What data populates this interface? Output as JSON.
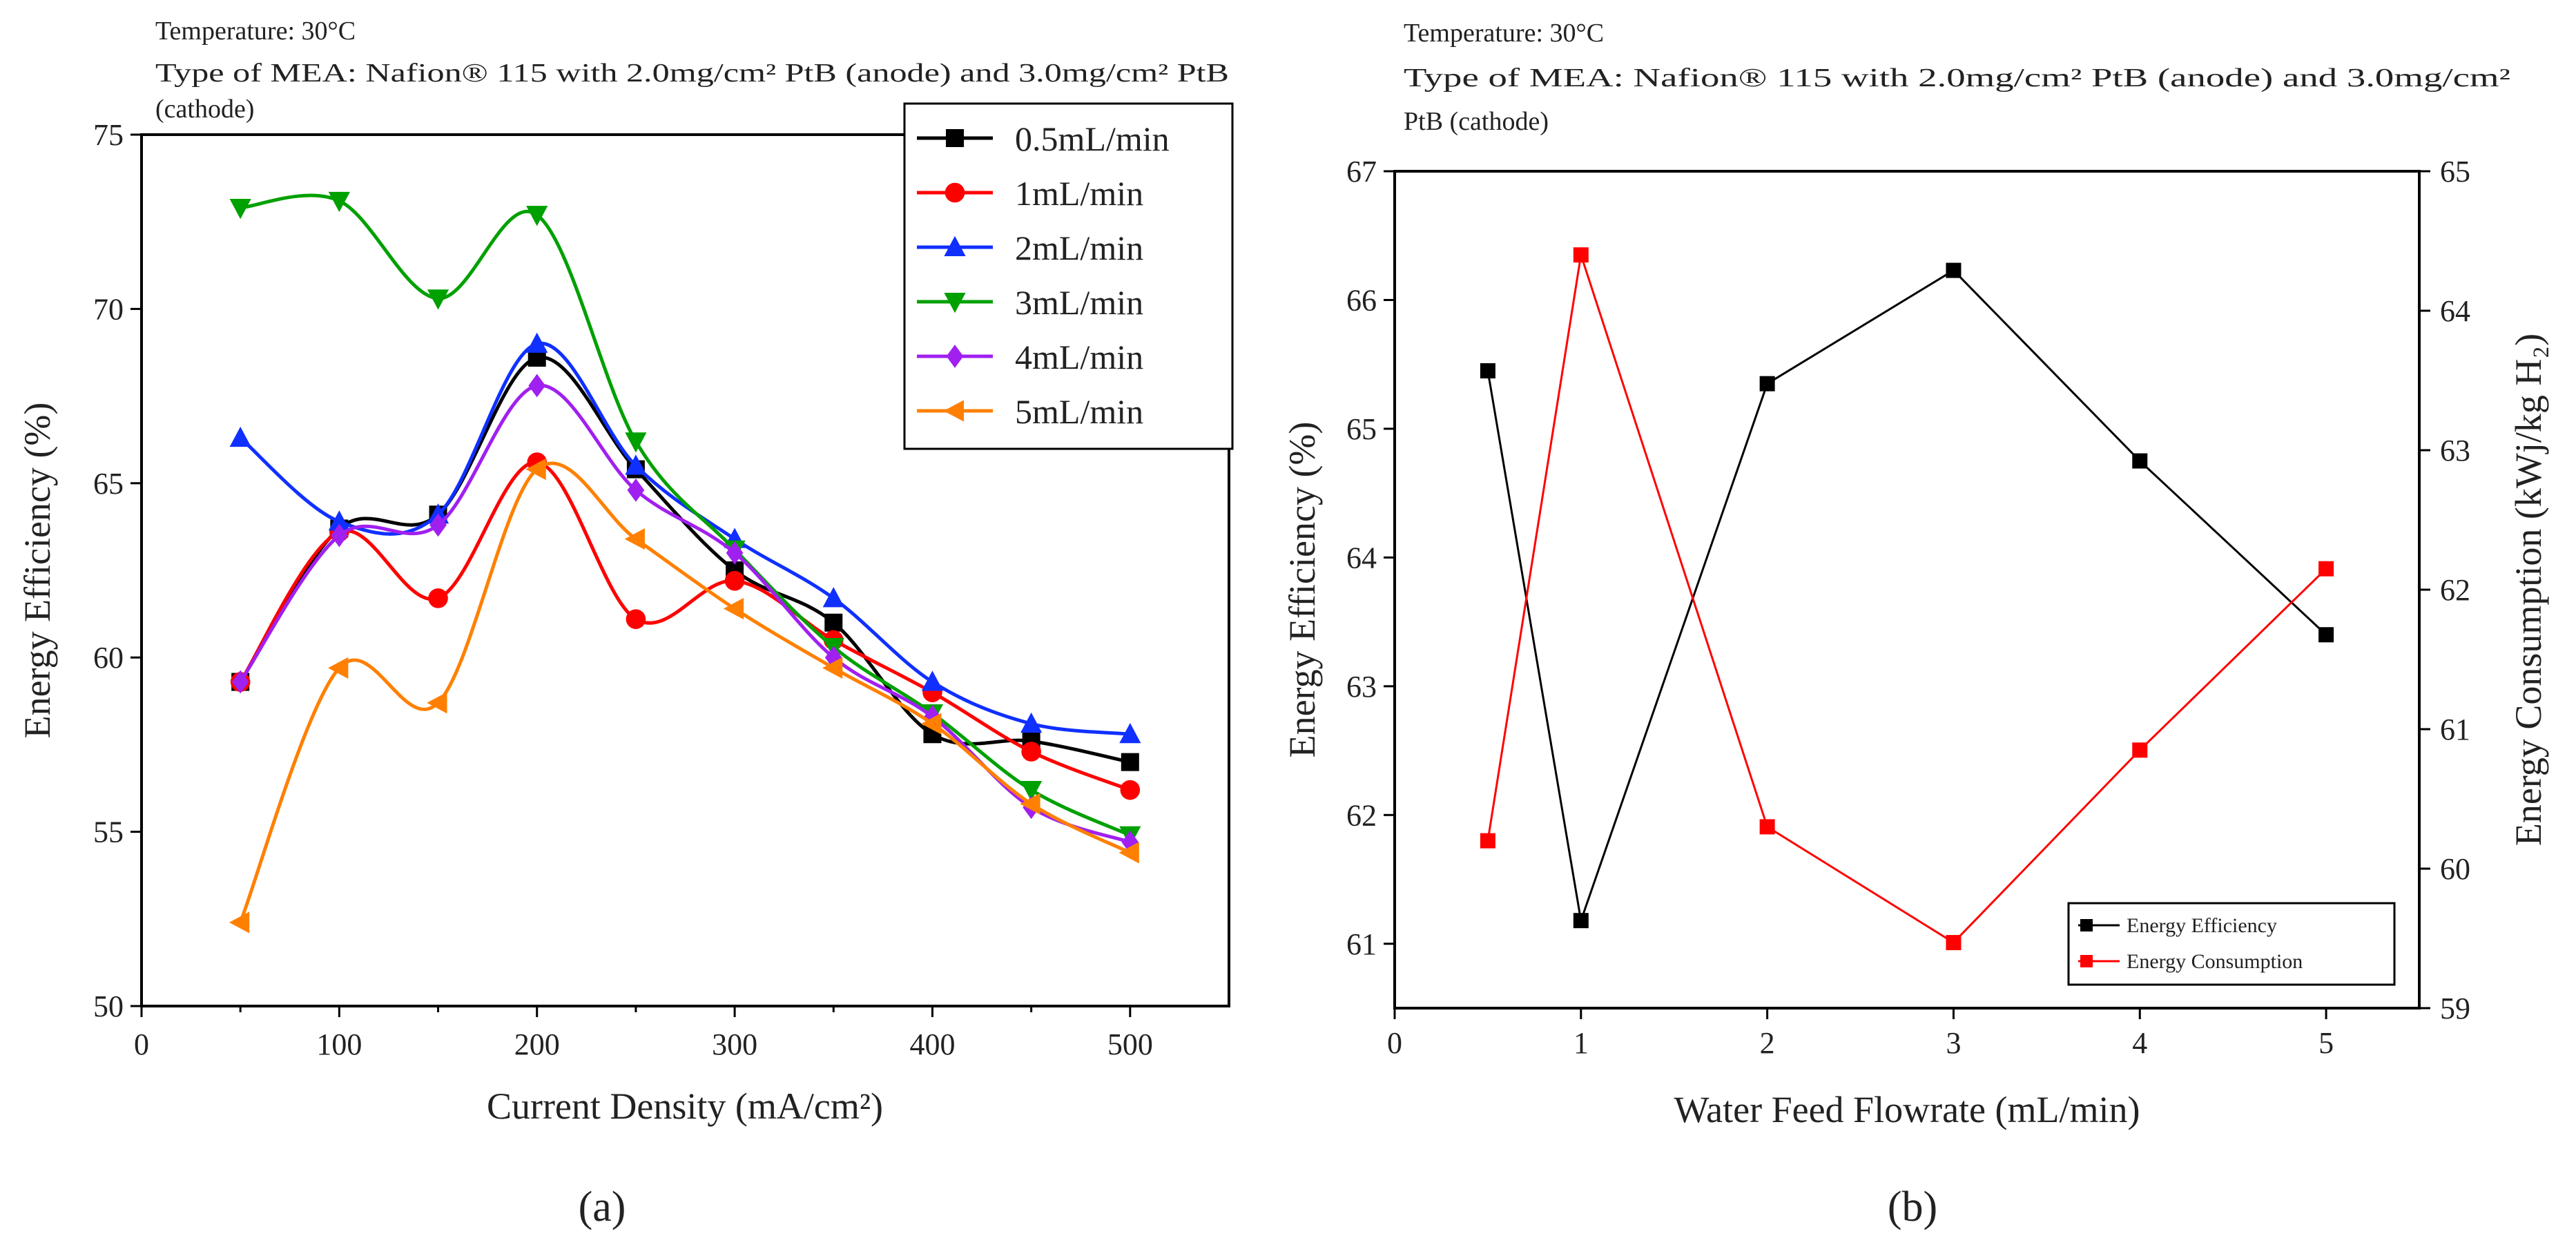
{
  "panel_a": {
    "note_line1": "Temperature: 30°C",
    "note_line2": "Type of MEA: Nafion® 115 with 2.0mg/cm² PtB (anode) and 3.0mg/cm² PtB",
    "note_line3": "(cathode)",
    "sublabel": "(a)"
  },
  "panel_b": {
    "note_line1": "Temperature: 30°C",
    "note_line2": "Type of MEA: Nafion® 115 with 2.0mg/cm² PtB (anode) and 3.0mg/cm²",
    "note_line3": "PtB (cathode)",
    "sublabel": "(b)"
  },
  "chart_data": [
    {
      "type": "line",
      "title": "",
      "xlabel": "Current Density (mA/cm²)",
      "ylabel": "Energy Efficiency (%)",
      "xlim": [
        0,
        550
      ],
      "ylim": [
        50,
        75
      ],
      "xticks": [
        0,
        100,
        200,
        300,
        400,
        500
      ],
      "yticks": [
        50,
        55,
        60,
        65,
        70,
        75
      ],
      "x": [
        50,
        100,
        150,
        200,
        250,
        300,
        350,
        400,
        450,
        500
      ],
      "legend_position": "top-right",
      "series": [
        {
          "name": "0.5mL/min",
          "color": "#000000",
          "marker": "square",
          "values": [
            59.3,
            63.7,
            64.1,
            68.6,
            65.4,
            62.5,
            61.0,
            57.8,
            57.6,
            57.0
          ]
        },
        {
          "name": "1mL/min",
          "color": "#ff0000",
          "marker": "circle",
          "values": [
            59.3,
            63.6,
            61.7,
            65.6,
            61.1,
            62.2,
            60.5,
            59.0,
            57.3,
            56.2
          ]
        },
        {
          "name": "2mL/min",
          "color": "#1030ff",
          "marker": "triangle-up",
          "values": [
            66.3,
            63.9,
            64.1,
            69.0,
            65.5,
            63.4,
            61.7,
            59.3,
            58.1,
            57.8
          ]
        },
        {
          "name": "3mL/min",
          "color": "#00a000",
          "marker": "triangle-down",
          "values": [
            72.9,
            73.1,
            70.3,
            72.7,
            66.2,
            63.1,
            60.3,
            58.4,
            56.2,
            54.9
          ]
        },
        {
          "name": "4mL/min",
          "color": "#a020f0",
          "marker": "diamond",
          "values": [
            59.3,
            63.5,
            63.8,
            67.8,
            64.8,
            63.0,
            60.0,
            58.3,
            55.7,
            54.7
          ]
        },
        {
          "name": "5mL/min",
          "color": "#ff8000",
          "marker": "triangle-left",
          "values": [
            52.4,
            59.7,
            58.7,
            65.4,
            63.4,
            61.4,
            59.7,
            58.1,
            55.8,
            54.4
          ]
        }
      ]
    },
    {
      "type": "line",
      "title": "",
      "xlabel": "Water Feed Flowrate (mL/min)",
      "ylabel": "Energy Efficiency (%)",
      "y2label": "Energy Consumption (kWj/kg H₂)",
      "xlim": [
        0,
        5.5
      ],
      "ylim": [
        60.5,
        67
      ],
      "y2lim": [
        59,
        65
      ],
      "xticks": [
        0,
        1,
        2,
        3,
        4,
        5
      ],
      "yticks": [
        61,
        62,
        63,
        64,
        65,
        66,
        67
      ],
      "y2ticks": [
        59,
        60,
        61,
        62,
        63,
        64,
        65
      ],
      "x": [
        0.5,
        1,
        2,
        3,
        4,
        5
      ],
      "legend_position": "bottom-right",
      "series": [
        {
          "name": "Energy Efficiency",
          "color": "#000000",
          "marker": "square",
          "axis": "left",
          "values": [
            65.45,
            61.18,
            65.35,
            66.23,
            64.75,
            63.4
          ]
        },
        {
          "name": "Energy Consumption",
          "color": "#ff0000",
          "marker": "square",
          "axis": "right",
          "values": [
            60.2,
            64.4,
            60.3,
            59.47,
            60.85,
            62.15
          ]
        }
      ]
    }
  ]
}
